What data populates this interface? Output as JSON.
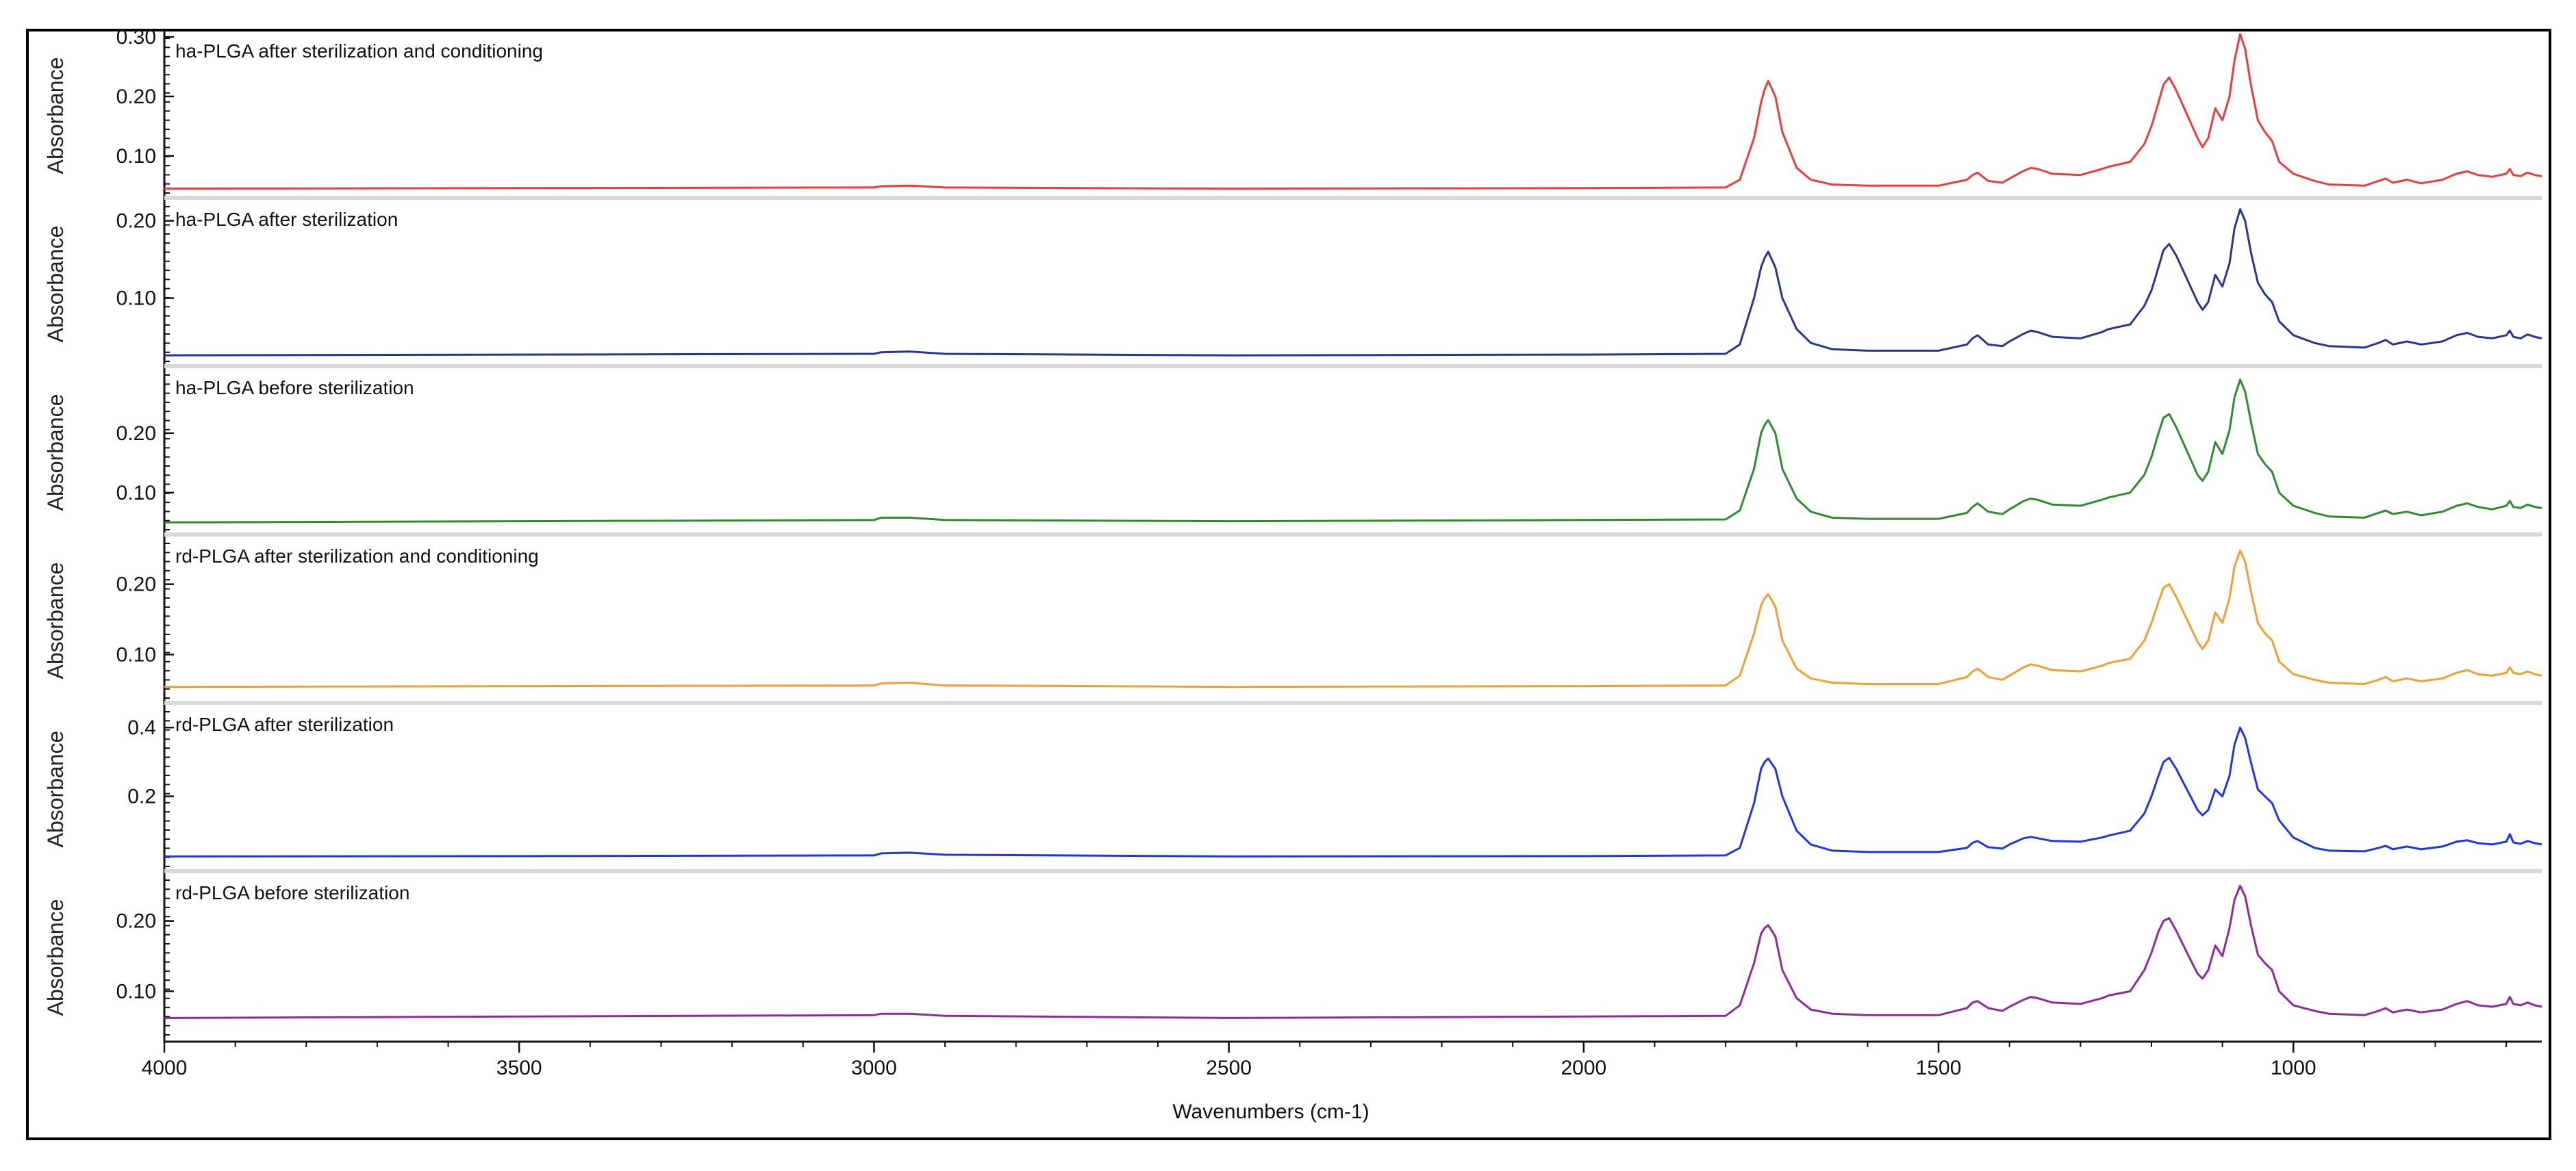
{
  "chart_data": {
    "type": "line",
    "xlabel": "Wavenumbers (cm-1)",
    "ylabel": "Absorbance",
    "xlim": [
      4000,
      650
    ],
    "x_reversed": true,
    "xticks": [
      4000,
      3500,
      3000,
      2500,
      2000,
      1500,
      1000
    ],
    "xtick_labels": [
      "4000",
      "3500",
      "3000",
      "2500",
      "2000",
      "1500",
      "1000"
    ],
    "grid": false,
    "legend": "none",
    "panels": [
      {
        "title": "ha-PLGA after sterilization and conditioning",
        "color": "#ee3b3b",
        "ylim": [
          0.04,
          0.3
        ],
        "yticks": [
          0.1,
          0.2,
          0.3
        ],
        "ytick_labels": [
          "0.10",
          "0.20",
          "0.30"
        ],
        "x": [
          4000,
          3500,
          3000,
          2990,
          2950,
          2900,
          2500,
          2000,
          1800,
          1780,
          1760,
          1750,
          1745,
          1740,
          1730,
          1720,
          1700,
          1680,
          1650,
          1600,
          1500,
          1460,
          1452,
          1445,
          1430,
          1410,
          1400,
          1380,
          1370,
          1360,
          1340,
          1300,
          1270,
          1260,
          1230,
          1210,
          1200,
          1190,
          1183,
          1175,
          1165,
          1150,
          1135,
          1128,
          1120,
          1110,
          1100,
          1090,
          1083,
          1075,
          1068,
          1060,
          1050,
          1040,
          1030,
          1020,
          1000,
          970,
          950,
          900,
          880,
          870,
          860,
          840,
          820,
          790,
          770,
          755,
          740,
          720,
          700,
          695,
          690,
          680,
          670,
          660,
          650
        ],
        "y": [
          0.045,
          0.046,
          0.047,
          0.049,
          0.05,
          0.047,
          0.045,
          0.046,
          0.047,
          0.06,
          0.13,
          0.19,
          0.212,
          0.226,
          0.2,
          0.14,
          0.08,
          0.06,
          0.052,
          0.05,
          0.05,
          0.06,
          0.068,
          0.072,
          0.058,
          0.055,
          0.062,
          0.075,
          0.08,
          0.078,
          0.07,
          0.068,
          0.078,
          0.082,
          0.09,
          0.12,
          0.15,
          0.19,
          0.22,
          0.232,
          0.21,
          0.17,
          0.13,
          0.115,
          0.13,
          0.18,
          0.16,
          0.2,
          0.26,
          0.305,
          0.28,
          0.22,
          0.16,
          0.14,
          0.125,
          0.09,
          0.07,
          0.058,
          0.052,
          0.05,
          0.058,
          0.062,
          0.055,
          0.06,
          0.054,
          0.06,
          0.07,
          0.074,
          0.068,
          0.065,
          0.07,
          0.078,
          0.068,
          0.066,
          0.072,
          0.068,
          0.066
        ]
      },
      {
        "title": "ha-PLGA after sterilization",
        "color": "#283593",
        "ylim": [
          0.02,
          0.22
        ],
        "yticks": [
          0.1,
          0.2
        ],
        "ytick_labels": [
          "0.10",
          "0.20"
        ],
        "x": [
          4000,
          3500,
          3000,
          2990,
          2950,
          2900,
          2500,
          2000,
          1800,
          1780,
          1760,
          1750,
          1745,
          1740,
          1730,
          1720,
          1700,
          1680,
          1650,
          1600,
          1500,
          1460,
          1452,
          1445,
          1430,
          1410,
          1400,
          1380,
          1370,
          1360,
          1340,
          1300,
          1270,
          1260,
          1230,
          1210,
          1200,
          1190,
          1183,
          1175,
          1165,
          1150,
          1135,
          1128,
          1120,
          1110,
          1100,
          1090,
          1083,
          1075,
          1068,
          1060,
          1050,
          1040,
          1030,
          1020,
          1000,
          970,
          950,
          900,
          880,
          870,
          860,
          840,
          820,
          790,
          770,
          755,
          740,
          720,
          700,
          695,
          690,
          680,
          670,
          660,
          650
        ],
        "y": [
          0.026,
          0.027,
          0.028,
          0.03,
          0.031,
          0.028,
          0.026,
          0.027,
          0.028,
          0.04,
          0.1,
          0.14,
          0.152,
          0.16,
          0.14,
          0.1,
          0.06,
          0.042,
          0.034,
          0.032,
          0.032,
          0.04,
          0.048,
          0.052,
          0.04,
          0.038,
          0.044,
          0.054,
          0.058,
          0.056,
          0.05,
          0.048,
          0.056,
          0.06,
          0.066,
          0.09,
          0.11,
          0.14,
          0.162,
          0.17,
          0.155,
          0.125,
          0.095,
          0.085,
          0.095,
          0.13,
          0.115,
          0.145,
          0.19,
          0.215,
          0.2,
          0.16,
          0.12,
          0.105,
          0.095,
          0.07,
          0.052,
          0.042,
          0.038,
          0.036,
          0.042,
          0.046,
          0.04,
          0.044,
          0.04,
          0.044,
          0.052,
          0.055,
          0.05,
          0.048,
          0.052,
          0.058,
          0.05,
          0.048,
          0.053,
          0.05,
          0.048
        ]
      },
      {
        "title": "ha-PLGA before sterilization",
        "color": "#2e8b2e",
        "ylim": [
          0.04,
          0.3
        ],
        "yticks": [
          0.1,
          0.2
        ],
        "ytick_labels": [
          "0.10",
          "0.20"
        ],
        "x": [
          4000,
          3500,
          3000,
          2990,
          2950,
          2900,
          2500,
          2000,
          1800,
          1780,
          1760,
          1750,
          1745,
          1740,
          1730,
          1720,
          1700,
          1680,
          1650,
          1600,
          1500,
          1460,
          1452,
          1445,
          1430,
          1410,
          1400,
          1380,
          1370,
          1360,
          1340,
          1300,
          1270,
          1260,
          1230,
          1210,
          1200,
          1190,
          1183,
          1175,
          1165,
          1150,
          1135,
          1128,
          1120,
          1110,
          1100,
          1090,
          1083,
          1075,
          1068,
          1060,
          1050,
          1040,
          1030,
          1020,
          1000,
          970,
          950,
          900,
          880,
          870,
          860,
          840,
          820,
          790,
          770,
          755,
          740,
          720,
          700,
          695,
          690,
          680,
          670,
          660,
          650
        ],
        "y": [
          0.05,
          0.052,
          0.054,
          0.058,
          0.058,
          0.054,
          0.052,
          0.054,
          0.055,
          0.07,
          0.14,
          0.2,
          0.214,
          0.222,
          0.2,
          0.14,
          0.09,
          0.068,
          0.058,
          0.056,
          0.056,
          0.066,
          0.076,
          0.082,
          0.068,
          0.064,
          0.072,
          0.086,
          0.09,
          0.088,
          0.08,
          0.078,
          0.088,
          0.092,
          0.1,
          0.13,
          0.16,
          0.2,
          0.226,
          0.232,
          0.21,
          0.17,
          0.13,
          0.12,
          0.135,
          0.185,
          0.165,
          0.205,
          0.26,
          0.29,
          0.27,
          0.22,
          0.165,
          0.148,
          0.135,
          0.1,
          0.078,
          0.066,
          0.06,
          0.058,
          0.066,
          0.07,
          0.064,
          0.068,
          0.062,
          0.068,
          0.078,
          0.082,
          0.076,
          0.072,
          0.078,
          0.086,
          0.076,
          0.074,
          0.08,
          0.076,
          0.074
        ]
      },
      {
        "title": "rd-PLGA after sterilization and conditioning",
        "color": "#f0a030",
        "ylim": [
          0.04,
          0.26
        ],
        "yticks": [
          0.1,
          0.2
        ],
        "ytick_labels": [
          "0.10",
          "0.20"
        ],
        "x": [
          4000,
          3500,
          3000,
          2990,
          2950,
          2900,
          2500,
          2000,
          1800,
          1780,
          1760,
          1750,
          1745,
          1740,
          1730,
          1720,
          1700,
          1680,
          1650,
          1600,
          1500,
          1460,
          1452,
          1445,
          1430,
          1410,
          1400,
          1380,
          1370,
          1360,
          1340,
          1300,
          1270,
          1260,
          1230,
          1210,
          1200,
          1190,
          1183,
          1175,
          1165,
          1150,
          1135,
          1128,
          1120,
          1110,
          1100,
          1090,
          1083,
          1075,
          1068,
          1060,
          1050,
          1040,
          1030,
          1020,
          1000,
          970,
          950,
          900,
          880,
          870,
          860,
          840,
          820,
          790,
          770,
          755,
          740,
          720,
          700,
          695,
          690,
          680,
          670,
          660,
          650
        ],
        "y": [
          0.054,
          0.055,
          0.056,
          0.059,
          0.06,
          0.056,
          0.054,
          0.055,
          0.056,
          0.07,
          0.13,
          0.17,
          0.18,
          0.186,
          0.168,
          0.12,
          0.08,
          0.066,
          0.06,
          0.058,
          0.058,
          0.068,
          0.076,
          0.08,
          0.068,
          0.064,
          0.07,
          0.082,
          0.086,
          0.084,
          0.078,
          0.076,
          0.084,
          0.088,
          0.094,
          0.12,
          0.145,
          0.175,
          0.195,
          0.2,
          0.182,
          0.15,
          0.118,
          0.108,
          0.12,
          0.16,
          0.145,
          0.18,
          0.225,
          0.248,
          0.232,
          0.19,
          0.145,
          0.13,
          0.12,
          0.09,
          0.072,
          0.064,
          0.06,
          0.058,
          0.064,
          0.068,
          0.062,
          0.066,
          0.062,
          0.066,
          0.074,
          0.078,
          0.072,
          0.07,
          0.074,
          0.082,
          0.074,
          0.072,
          0.076,
          0.072,
          0.07
        ]
      },
      {
        "title": "rd-PLGA after sterilization",
        "color": "#1f35e8",
        "ylim": [
          0.0,
          0.45
        ],
        "yticks": [
          0.2,
          0.4
        ],
        "ytick_labels": [
          "0.2",
          "0.4"
        ],
        "x": [
          4000,
          3500,
          3000,
          2990,
          2950,
          2900,
          2500,
          2000,
          1800,
          1780,
          1760,
          1750,
          1745,
          1740,
          1730,
          1720,
          1700,
          1680,
          1650,
          1600,
          1500,
          1460,
          1452,
          1445,
          1430,
          1410,
          1400,
          1380,
          1370,
          1360,
          1340,
          1300,
          1270,
          1260,
          1230,
          1210,
          1200,
          1190,
          1183,
          1175,
          1165,
          1150,
          1135,
          1128,
          1120,
          1110,
          1100,
          1090,
          1083,
          1075,
          1068,
          1060,
          1050,
          1040,
          1030,
          1020,
          1000,
          970,
          950,
          900,
          880,
          870,
          860,
          840,
          820,
          790,
          770,
          755,
          740,
          720,
          700,
          695,
          690,
          680,
          670,
          660,
          650
        ],
        "y": [
          0.025,
          0.026,
          0.028,
          0.034,
          0.036,
          0.03,
          0.025,
          0.026,
          0.028,
          0.05,
          0.18,
          0.28,
          0.3,
          0.31,
          0.28,
          0.2,
          0.1,
          0.06,
          0.042,
          0.038,
          0.038,
          0.05,
          0.065,
          0.07,
          0.052,
          0.048,
          0.06,
          0.078,
          0.082,
          0.078,
          0.07,
          0.068,
          0.08,
          0.086,
          0.1,
          0.15,
          0.2,
          0.26,
          0.3,
          0.312,
          0.28,
          0.22,
          0.16,
          0.145,
          0.16,
          0.22,
          0.2,
          0.26,
          0.35,
          0.4,
          0.37,
          0.3,
          0.22,
          0.2,
          0.18,
          0.13,
          0.08,
          0.05,
          0.042,
          0.04,
          0.05,
          0.056,
          0.046,
          0.054,
          0.046,
          0.054,
          0.068,
          0.072,
          0.064,
          0.06,
          0.068,
          0.09,
          0.066,
          0.062,
          0.07,
          0.064,
          0.06
        ]
      },
      {
        "title": "rd-PLGA before sterilization",
        "color": "#8e2a9c",
        "ylim": [
          0.04,
          0.26
        ],
        "yticks": [
          0.1,
          0.2
        ],
        "ytick_labels": [
          "0.10",
          "0.20"
        ],
        "x": [
          4000,
          3500,
          3000,
          2990,
          2950,
          2900,
          2500,
          2000,
          1800,
          1780,
          1760,
          1750,
          1745,
          1740,
          1730,
          1720,
          1700,
          1680,
          1650,
          1600,
          1500,
          1460,
          1452,
          1445,
          1430,
          1410,
          1400,
          1380,
          1370,
          1360,
          1340,
          1300,
          1270,
          1260,
          1230,
          1210,
          1200,
          1190,
          1183,
          1175,
          1165,
          1150,
          1135,
          1128,
          1120,
          1110,
          1100,
          1090,
          1083,
          1075,
          1068,
          1060,
          1050,
          1040,
          1030,
          1020,
          1000,
          970,
          950,
          900,
          880,
          870,
          860,
          840,
          820,
          790,
          770,
          755,
          740,
          720,
          700,
          695,
          690,
          680,
          670,
          660,
          650
        ],
        "y": [
          0.062,
          0.064,
          0.066,
          0.068,
          0.068,
          0.065,
          0.062,
          0.064,
          0.065,
          0.08,
          0.14,
          0.182,
          0.19,
          0.194,
          0.178,
          0.13,
          0.09,
          0.074,
          0.068,
          0.066,
          0.066,
          0.076,
          0.084,
          0.086,
          0.076,
          0.072,
          0.078,
          0.088,
          0.092,
          0.09,
          0.084,
          0.082,
          0.09,
          0.094,
          0.1,
          0.13,
          0.155,
          0.185,
          0.2,
          0.204,
          0.186,
          0.155,
          0.125,
          0.118,
          0.13,
          0.165,
          0.15,
          0.19,
          0.23,
          0.25,
          0.235,
          0.195,
          0.152,
          0.14,
          0.13,
          0.1,
          0.08,
          0.072,
          0.068,
          0.066,
          0.072,
          0.076,
          0.07,
          0.074,
          0.07,
          0.074,
          0.082,
          0.086,
          0.08,
          0.078,
          0.082,
          0.092,
          0.082,
          0.08,
          0.084,
          0.08,
          0.078
        ]
      }
    ]
  }
}
